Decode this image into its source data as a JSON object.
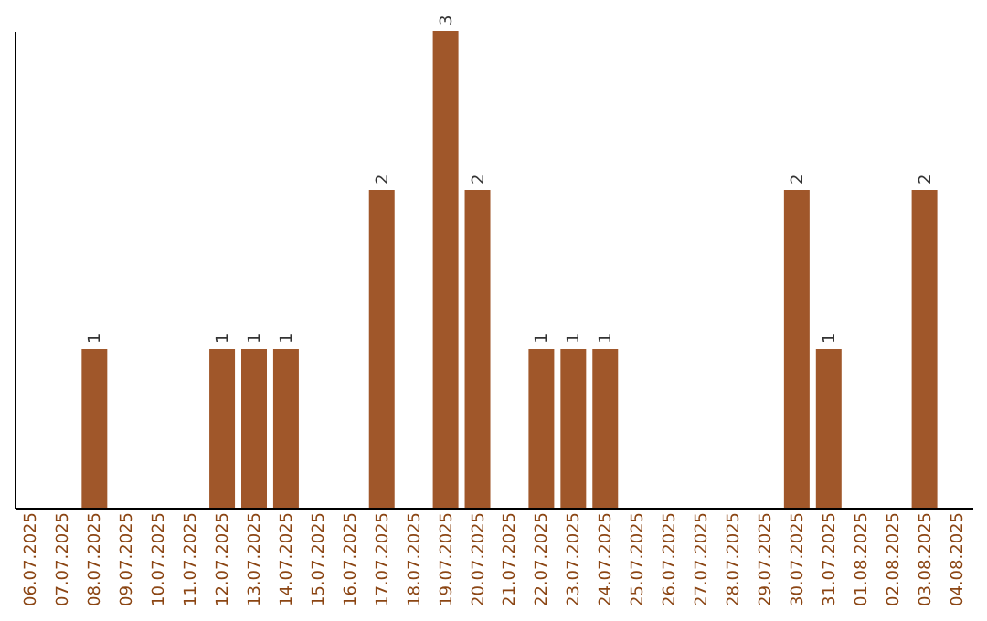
{
  "chart_data": {
    "type": "bar",
    "categories": [
      "06.07.2025",
      "07.07.2025",
      "08.07.2025",
      "09.07.2025",
      "10.07.2025",
      "11.07.2025",
      "12.07.2025",
      "13.07.2025",
      "14.07.2025",
      "15.07.2025",
      "16.07.2025",
      "17.07.2025",
      "18.07.2025",
      "19.07.2025",
      "20.07.2025",
      "21.07.2025",
      "22.07.2025",
      "23.07.2025",
      "24.07.2025",
      "25.07.2025",
      "26.07.2025",
      "27.07.2025",
      "28.07.2025",
      "29.07.2025",
      "30.07.2025",
      "31.07.2025",
      "01.08.2025",
      "02.08.2025",
      "03.08.2025",
      "04.08.2025"
    ],
    "values": [
      null,
      null,
      1,
      null,
      null,
      null,
      1,
      1,
      1,
      null,
      null,
      2,
      null,
      3,
      2,
      null,
      1,
      1,
      1,
      null,
      null,
      null,
      null,
      null,
      2,
      1,
      null,
      null,
      2,
      null
    ],
    "color": "#a0572a",
    "data_labels": true,
    "tick_labels": "x",
    "grid": false
  }
}
